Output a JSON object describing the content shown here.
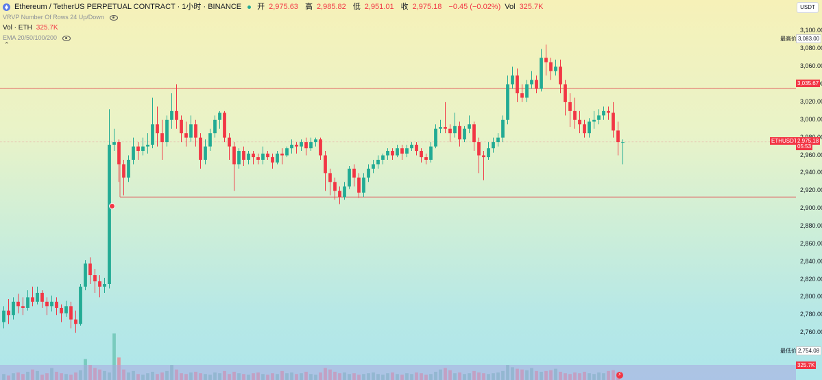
{
  "header": {
    "title": "Ethereum / TetherUS PERPETUAL CONTRACT · 1小时 · BINANCE",
    "ohlc": [
      {
        "label": "开",
        "value": "2,975.63"
      },
      {
        "label": "高",
        "value": "2,985.82"
      },
      {
        "label": "低",
        "value": "2,951.01"
      },
      {
        "label": "收",
        "value": "2,975.18"
      }
    ],
    "change": "−0.45 (−0.02%)",
    "vol_label": "Vol",
    "vol_value": "325.7K"
  },
  "indicators": {
    "vrvp": "VRVP Number Of Rows 24 Up/Down",
    "vol_label": "Vol · ETH",
    "vol_value": "325.7K",
    "ema": "EMA 20/50/100/200"
  },
  "currency": "USDT",
  "chart_data": {
    "type": "candlestick",
    "ylim": [
      2740,
      3105
    ],
    "y_ticks": [
      "3,100.00",
      "3,080.00",
      "3,060.00",
      "3,040.00",
      "3,020.00",
      "3,000.00",
      "2,980.00",
      "2,960.00",
      "2,940.00",
      "2,920.00",
      "2,900.00",
      "2,880.00",
      "2,860.00",
      "2,840.00",
      "2,820.00",
      "2,800.00",
      "2,780.00",
      "2,760.00"
    ],
    "candles": [
      [
        2772,
        2785,
        2765,
        2790
      ],
      [
        2785,
        2780,
        2770,
        2798
      ],
      [
        2780,
        2795,
        2775,
        2800
      ],
      [
        2795,
        2790,
        2782,
        2804
      ],
      [
        2790,
        2788,
        2780,
        2800
      ],
      [
        2788,
        2800,
        2785,
        2808
      ],
      [
        2800,
        2795,
        2790,
        2812
      ],
      [
        2795,
        2805,
        2792,
        2812
      ],
      [
        2805,
        2795,
        2788,
        2808
      ],
      [
        2795,
        2790,
        2780,
        2800
      ],
      [
        2790,
        2795,
        2784,
        2802
      ],
      [
        2795,
        2788,
        2780,
        2800
      ],
      [
        2788,
        2782,
        2772,
        2792
      ],
      [
        2782,
        2790,
        2778,
        2796
      ],
      [
        2790,
        2775,
        2765,
        2795
      ],
      [
        2775,
        2770,
        2760,
        2785
      ],
      [
        2770,
        2812,
        2768,
        2815
      ],
      [
        2812,
        2838,
        2808,
        2842
      ],
      [
        2838,
        2825,
        2815,
        2845
      ],
      [
        2825,
        2818,
        2805,
        2832
      ],
      [
        2818,
        2812,
        2800,
        2825
      ],
      [
        2812,
        2815,
        2805,
        2822
      ],
      [
        2815,
        2972,
        2810,
        3012
      ],
      [
        2972,
        2975,
        2965,
        2990
      ],
      [
        2975,
        2950,
        2930,
        2978
      ],
      [
        2950,
        2935,
        2915,
        2955
      ],
      [
        2935,
        2955,
        2930,
        2960
      ],
      [
        2955,
        2970,
        2950,
        2980
      ],
      [
        2970,
        2965,
        2955,
        2975
      ],
      [
        2965,
        2970,
        2960,
        2980
      ],
      [
        2970,
        2972,
        2962,
        2985
      ],
      [
        2972,
        2995,
        2968,
        3025
      ],
      [
        2995,
        2985,
        2970,
        3015
      ],
      [
        2985,
        2975,
        2955,
        3000
      ],
      [
        2975,
        3000,
        2970,
        3005
      ],
      [
        3000,
        3010,
        2990,
        3030
      ],
      [
        3010,
        3000,
        2990,
        3040
      ],
      [
        3000,
        2985,
        2975,
        3005
      ],
      [
        2985,
        2980,
        2970,
        2998
      ],
      [
        2980,
        2995,
        2975,
        3005
      ],
      [
        2995,
        2980,
        2970,
        3000
      ],
      [
        2980,
        2955,
        2945,
        2985
      ],
      [
        2955,
        2970,
        2950,
        2978
      ],
      [
        2970,
        2985,
        2965,
        2990
      ],
      [
        2985,
        3000,
        2980,
        3005
      ],
      [
        3000,
        3008,
        2990,
        3010
      ],
      [
        3008,
        2980,
        2975,
        3010
      ],
      [
        2980,
        2970,
        2955,
        2985
      ],
      [
        2970,
        2950,
        2920,
        2975
      ],
      [
        2950,
        2965,
        2945,
        2968
      ],
      [
        2965,
        2955,
        2948,
        2970
      ],
      [
        2955,
        2962,
        2950,
        2965
      ],
      [
        2962,
        2958,
        2950,
        2965
      ],
      [
        2958,
        2955,
        2950,
        2962
      ],
      [
        2955,
        2962,
        2950,
        2970
      ],
      [
        2962,
        2958,
        2955,
        2965
      ],
      [
        2958,
        2952,
        2945,
        2962
      ],
      [
        2952,
        2962,
        2950,
        2965
      ],
      [
        2962,
        2960,
        2950,
        2968
      ],
      [
        2960,
        2968,
        2958,
        2970
      ],
      [
        2968,
        2972,
        2962,
        2978
      ],
      [
        2972,
        2970,
        2962,
        2975
      ],
      [
        2970,
        2975,
        2965,
        2978
      ],
      [
        2975,
        2968,
        2960,
        2980
      ],
      [
        2968,
        2975,
        2965,
        2980
      ],
      [
        2975,
        2978,
        2970,
        2980
      ],
      [
        2978,
        2960,
        2955,
        2980
      ],
      [
        2960,
        2940,
        2920,
        2965
      ],
      [
        2940,
        2930,
        2915,
        2945
      ],
      [
        2930,
        2920,
        2910,
        2935
      ],
      [
        2920,
        2913,
        2905,
        2925
      ],
      [
        2913,
        2925,
        2910,
        2930
      ],
      [
        2925,
        2945,
        2922,
        2948
      ],
      [
        2945,
        2935,
        2925,
        2950
      ],
      [
        2935,
        2918,
        2912,
        2940
      ],
      [
        2918,
        2935,
        2913,
        2940
      ],
      [
        2935,
        2945,
        2930,
        2950
      ],
      [
        2945,
        2950,
        2940,
        2955
      ],
      [
        2950,
        2955,
        2945,
        2960
      ],
      [
        2955,
        2960,
        2950,
        2962
      ],
      [
        2960,
        2965,
        2955,
        2968
      ],
      [
        2965,
        2960,
        2955,
        2968
      ],
      [
        2960,
        2968,
        2958,
        2972
      ],
      [
        2968,
        2962,
        2955,
        2972
      ],
      [
        2962,
        2968,
        2958,
        2972
      ],
      [
        2968,
        2972,
        2965,
        2975
      ],
      [
        2972,
        2965,
        2960,
        2975
      ],
      [
        2965,
        2958,
        2952,
        2968
      ],
      [
        2958,
        2955,
        2950,
        2962
      ],
      [
        2955,
        2970,
        2952,
        2975
      ],
      [
        2970,
        2990,
        2968,
        2995
      ],
      [
        2990,
        2992,
        2985,
        3000
      ],
      [
        2992,
        2990,
        2985,
        3020
      ],
      [
        2990,
        2985,
        2975,
        2995
      ],
      [
        2985,
        2993,
        2980,
        3008
      ],
      [
        2993,
        2978,
        2970,
        2998
      ],
      [
        2978,
        2990,
        2975,
        2993
      ],
      [
        2990,
        2995,
        2985,
        3005
      ],
      [
        2995,
        2975,
        2965,
        2998
      ],
      [
        2975,
        2960,
        2940,
        2980
      ],
      [
        2960,
        2958,
        2932,
        2965
      ],
      [
        2958,
        2968,
        2955,
        2975
      ],
      [
        2968,
        2975,
        2963,
        2980
      ],
      [
        2975,
        2980,
        2970,
        2985
      ],
      [
        2980,
        3000,
        2975,
        3005
      ],
      [
        3000,
        3040,
        2995,
        3050
      ],
      [
        3040,
        3050,
        3035,
        3060
      ],
      [
        3050,
        3030,
        3020,
        3058
      ],
      [
        3030,
        3025,
        3020,
        3040
      ],
      [
        3025,
        3040,
        3020,
        3045
      ],
      [
        3040,
        3045,
        3035,
        3055
      ],
      [
        3045,
        3035,
        3030,
        3050
      ],
      [
        3035,
        3070,
        3032,
        3080
      ],
      [
        3070,
        3065,
        3050,
        3085
      ],
      [
        3065,
        3055,
        3045,
        3070
      ],
      [
        3055,
        3060,
        3050,
        3068
      ],
      [
        3060,
        3040,
        3030,
        3068
      ],
      [
        3040,
        3020,
        3005,
        3045
      ],
      [
        3020,
        3010,
        2992,
        3030
      ],
      [
        3010,
        3000,
        2990,
        3025
      ],
      [
        3000,
        2995,
        2985,
        3010
      ],
      [
        2995,
        2985,
        2980,
        3000
      ],
      [
        2985,
        2998,
        2980,
        3002
      ],
      [
        2998,
        3000,
        2990,
        3010
      ],
      [
        3000,
        3005,
        2995,
        3012
      ],
      [
        3005,
        3010,
        3000,
        3015
      ],
      [
        3010,
        3008,
        3000,
        3015
      ],
      [
        3008,
        2988,
        2980,
        3020
      ],
      [
        2988,
        2975,
        2960,
        2998
      ],
      [
        2975,
        2975,
        2950,
        2978
      ]
    ],
    "volume_ylim": [
      0,
      64
    ],
    "volume": [
      8,
      6,
      9,
      10,
      8,
      11,
      14,
      12,
      7,
      9,
      16,
      11,
      9,
      8,
      7,
      10,
      13,
      28,
      20,
      16,
      14,
      12,
      10,
      62,
      30,
      14,
      10,
      12,
      8,
      7,
      9,
      11,
      8,
      10,
      12,
      20,
      14,
      9,
      8,
      10,
      11,
      9,
      8,
      7,
      10,
      9,
      12,
      8,
      11,
      9,
      8,
      7,
      9,
      10,
      8,
      7,
      9,
      8,
      12,
      9,
      10,
      8,
      9,
      11,
      8,
      7,
      10,
      16,
      14,
      11,
      9,
      10,
      8,
      9,
      7,
      8,
      9,
      10,
      8,
      7,
      9,
      10,
      8,
      7,
      9,
      8,
      10,
      9,
      7,
      8,
      11,
      14,
      16,
      13,
      9,
      10,
      8,
      9,
      12,
      10,
      9,
      8,
      9,
      10,
      12,
      20,
      17,
      15,
      14,
      13,
      16,
      12,
      11,
      12,
      13,
      15,
      11,
      9,
      8,
      10,
      9,
      11,
      9,
      8,
      10,
      9,
      12,
      13,
      10
    ],
    "h_lines": [
      {
        "value": 3035.67,
        "tag": "3,035.67"
      },
      {
        "value": 2913,
        "tag": ""
      },
      {
        "value": 2975.18,
        "tag": "2,975.18"
      }
    ]
  },
  "tags": {
    "high_label": "最高价",
    "high_value": "3,083.00",
    "low_label": "最低价",
    "low_value": "2,754.08",
    "line_tag": "3,035.67",
    "symbol_tag": "ETHUSDT.P",
    "price_tag": "2,975.18",
    "countdown": "05:53",
    "volume_tag": "325.7K"
  },
  "colors": {
    "up": "#22ab94",
    "down": "#f23645",
    "up_vol": "#6fc5b6",
    "down_vol": "#e98a93"
  },
  "icons": {
    "eye": "eye-icon",
    "collapse": "chevron-up-icon",
    "coin": "ethereum-icon",
    "badge": "lightning-icon"
  }
}
